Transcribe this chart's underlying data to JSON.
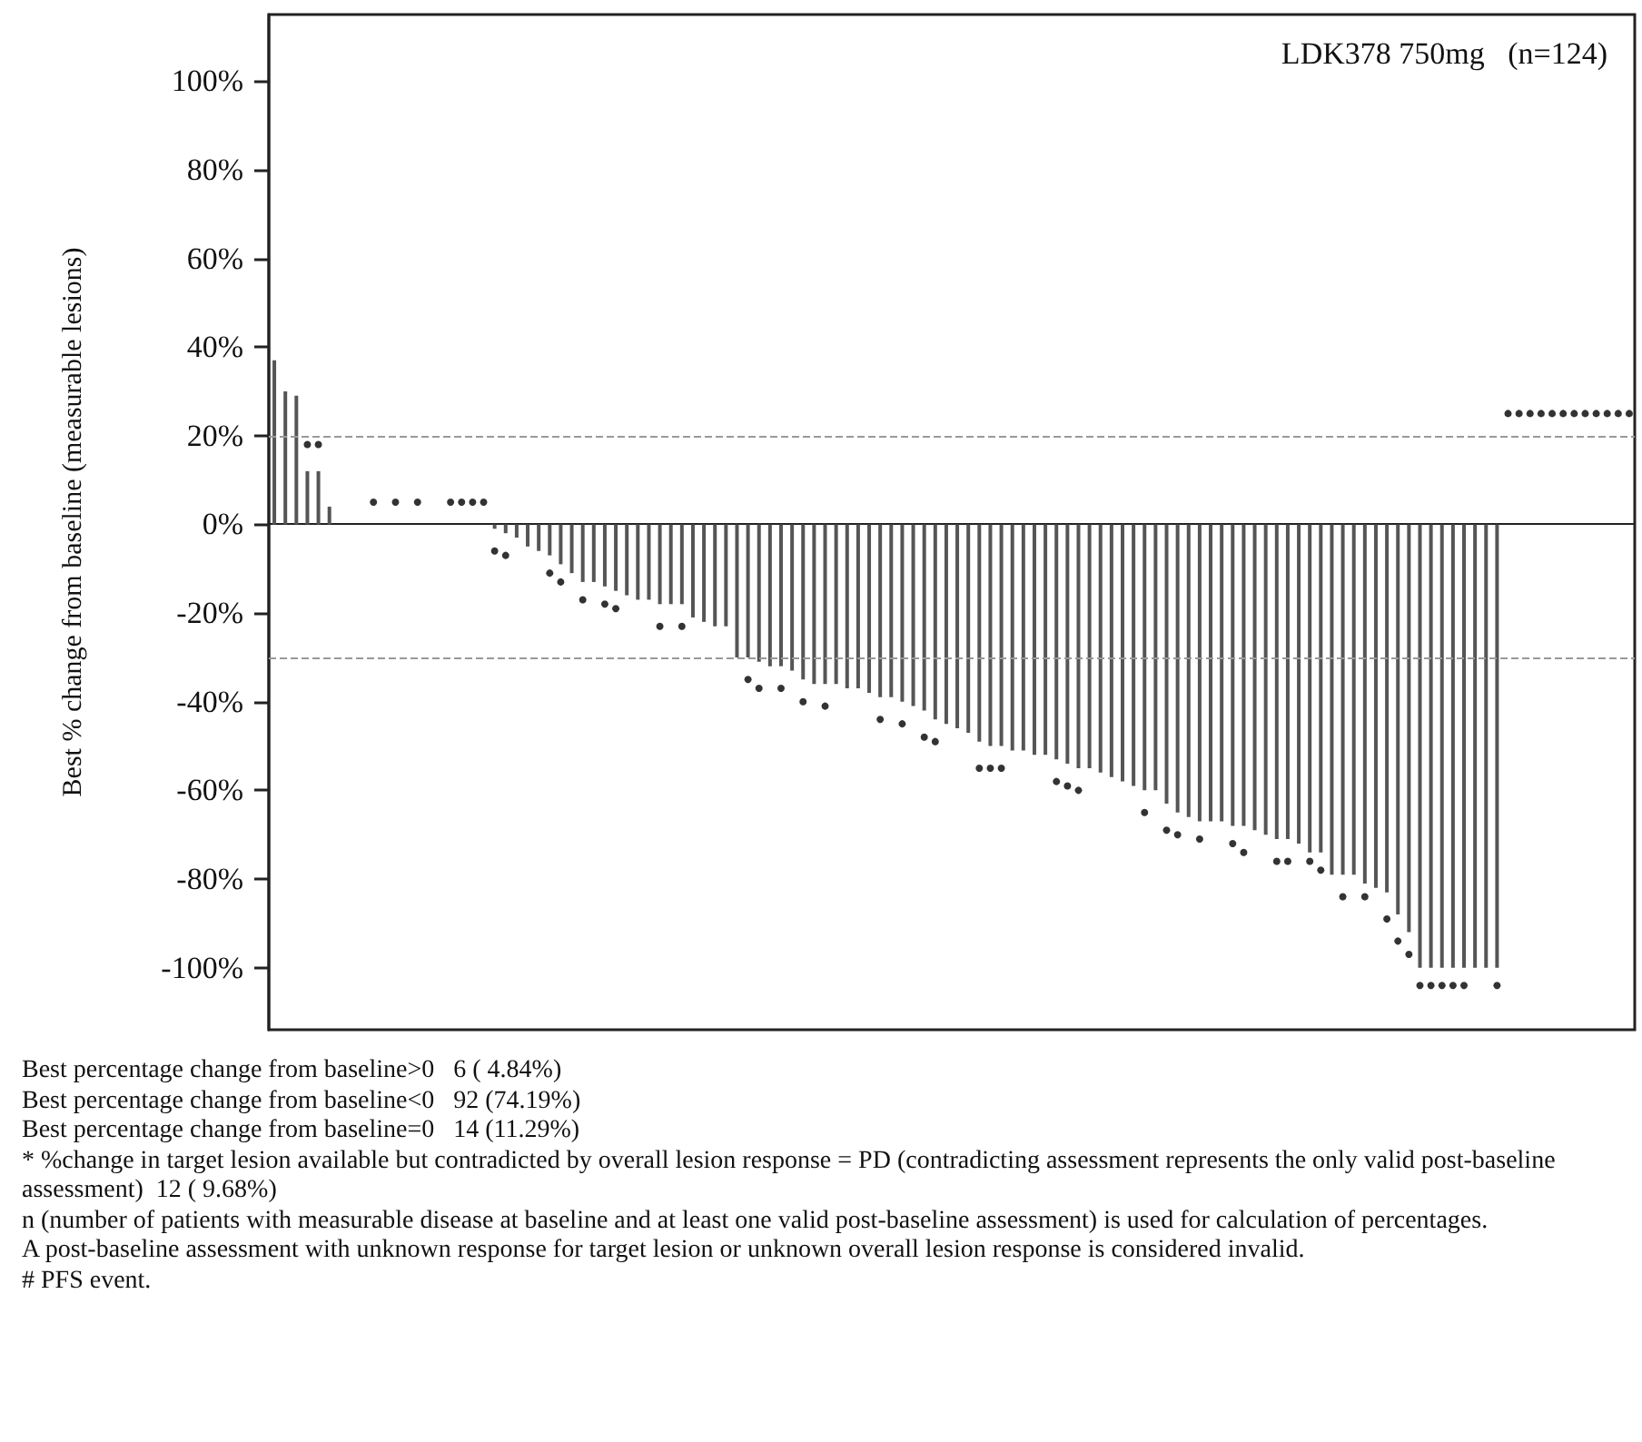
{
  "chart_data": {
    "type": "bar",
    "title": "LDK378 750mg   (n=124)",
    "ylabel": "Best % change from baseline (measurable lesions)",
    "categories": [
      null,
      null,
      null,
      null,
      null,
      null,
      null,
      null,
      null,
      null,
      null,
      null,
      null,
      null,
      null,
      null,
      null,
      null,
      null,
      null,
      null,
      null,
      null,
      null,
      null,
      null,
      null,
      null,
      null,
      null,
      null,
      null,
      null,
      null,
      null,
      null,
      null,
      null,
      null,
      null,
      null,
      null,
      null,
      null,
      null,
      null,
      null,
      null,
      null,
      null,
      null,
      null,
      null,
      null,
      null,
      null,
      null,
      null,
      null,
      null,
      null,
      null,
      null,
      null,
      null,
      null,
      null,
      null,
      null,
      null,
      null,
      null,
      null,
      null,
      null,
      null,
      null,
      null,
      null,
      null,
      null,
      null,
      null,
      null,
      null,
      null,
      null,
      null,
      null,
      null,
      null,
      null,
      null,
      null,
      null,
      null,
      null,
      null,
      null,
      null,
      null,
      null,
      null,
      null,
      null,
      null,
      null,
      null,
      null,
      null,
      null,
      null,
      null,
      null,
      null,
      null,
      null,
      null,
      null,
      null,
      null,
      null,
      null,
      null
    ],
    "series": [
      {
        "color": "#555555",
        "values": [
          37,
          30,
          29,
          12,
          12,
          4,
          0,
          0,
          0,
          0,
          0,
          0,
          0,
          0,
          0,
          0,
          0,
          0,
          0,
          0,
          -1,
          -2,
          -3,
          -5,
          -6,
          -7,
          -9,
          -11,
          -13,
          -13,
          -14,
          -15,
          -16,
          -17,
          -17,
          -18,
          -18,
          -18,
          -21,
          -22,
          -23,
          -23,
          -30,
          -30,
          -31,
          -32,
          -32,
          -33,
          -35,
          -36,
          -36,
          -36,
          -37,
          -37,
          -38,
          -39,
          -39,
          -40,
          -41,
          -42,
          -44,
          -45,
          -46,
          -47,
          -49,
          -50,
          -50,
          -51,
          -51,
          -52,
          -52,
          -53,
          -54,
          -55,
          -55,
          -56,
          -57,
          -58,
          -59,
          -60,
          -60,
          -63,
          -65,
          -66,
          -67,
          -67,
          -67,
          -68,
          -68,
          -69,
          -70,
          -71,
          -71,
          -72,
          -74,
          -74,
          -79,
          -79,
          -79,
          -81,
          -82,
          -83,
          -88,
          -92,
          -100,
          -100,
          -100,
          -100,
          -100,
          -100,
          -100,
          -100,
          null,
          null,
          null,
          null,
          null,
          null,
          null,
          null,
          null,
          null,
          null,
          null
        ]
      },
      {
        "type": "scatter",
        "color": "#000000",
        "values": [
          null,
          null,
          null,
          18,
          18,
          null,
          null,
          null,
          null,
          5,
          null,
          5,
          null,
          5,
          null,
          null,
          5,
          5,
          5,
          5,
          -6,
          -7,
          null,
          null,
          null,
          -11,
          -13,
          null,
          -17,
          null,
          -18,
          -19,
          null,
          null,
          null,
          -23,
          null,
          -23,
          null,
          null,
          null,
          null,
          null,
          -35,
          -37,
          null,
          -37,
          null,
          -40,
          null,
          -41,
          null,
          null,
          null,
          null,
          -44,
          null,
          -45,
          null,
          -48,
          -49,
          null,
          null,
          null,
          -55,
          -55,
          -55,
          null,
          null,
          null,
          null,
          -58,
          -59,
          -60,
          null,
          null,
          null,
          null,
          null,
          -65,
          null,
          -69,
          -70,
          null,
          -71,
          null,
          null,
          -72,
          -74,
          null,
          null,
          -76,
          -76,
          null,
          -76,
          -78,
          null,
          -84,
          null,
          -84,
          null,
          -89,
          -94,
          -97,
          -104,
          -104,
          -104,
          -104,
          -104,
          null,
          null,
          -104,
          25,
          25,
          25,
          25,
          25,
          25,
          25,
          25,
          25,
          25,
          25,
          25
        ]
      }
    ],
    "marker": "circle",
    "ylim": [
      -114,
      115
    ],
    "yticks": [
      {
        "value": -100,
        "label": "-100%"
      },
      {
        "value": -80,
        "label": "-80%"
      },
      {
        "value": -60,
        "label": "-60%"
      },
      {
        "value": -40,
        "label": "-40%"
      },
      {
        "value": -20,
        "label": "-20%"
      },
      {
        "value": 0,
        "label": "0%"
      },
      {
        "value": 20,
        "label": "20%"
      },
      {
        "value": 40,
        "label": "40%"
      },
      {
        "value": 60,
        "label": "60%"
      },
      {
        "value": 80,
        "label": "80%"
      },
      {
        "value": 100,
        "label": "100%"
      }
    ],
    "tick_labels": "y",
    "ref_lines": [
      {
        "axis": "y",
        "value": 20,
        "color": "#999999",
        "line_style": "dashed"
      },
      {
        "axis": "y",
        "value": -30,
        "color": "#999999",
        "line_style": "dashed"
      }
    ],
    "annotations": [
      "Best percentage change from baseline>0   6 ( 4.84%)",
      "Best percentage change from baseline<0   92 (74.19%)",
      "Best percentage change from baseline=0   14 (11.29%)",
      "* %change in target lesion available but contradicted by overall lesion response = PD (contradicting assessment represents the only valid post-baseline assessment)  12 ( 9.68%)",
      "n (number of patients with measurable disease at baseline and at least one valid post-baseline assessment) is used for calculation of percentages.",
      "A post-baseline assessment with unknown response for target lesion or unknown overall lesion response is considered invalid.",
      "# PFS event."
    ]
  }
}
